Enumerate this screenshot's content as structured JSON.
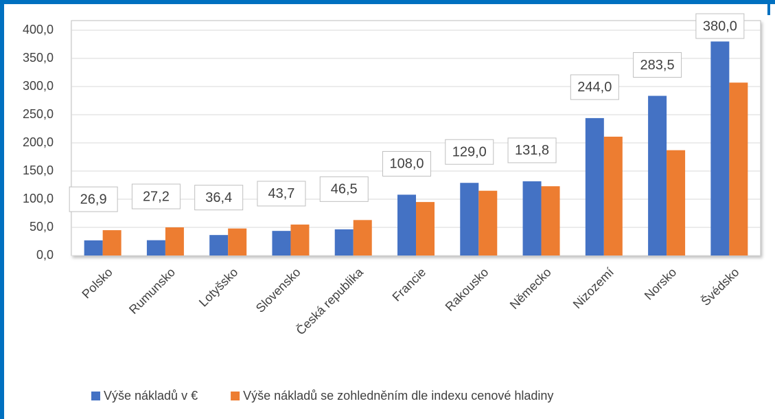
{
  "chart_data": {
    "type": "bar",
    "categories": [
      "Polsko",
      "Rumunsko",
      "Lotyšsko",
      "Slovensko",
      "Česká republika",
      "Francie",
      "Rakousko",
      "Německo",
      "Nizozemí",
      "Norsko",
      "Švédsko"
    ],
    "series": [
      {
        "name": "Výše nákladů v €",
        "color": "#4472c4",
        "values": [
          26.9,
          27.2,
          36.4,
          43.7,
          46.5,
          108.0,
          129.0,
          131.8,
          244.0,
          283.5,
          380.0
        ],
        "value_labels": [
          "26,9",
          "27,2",
          "36,4",
          "43,7",
          "46,5",
          "108,0",
          "129,0",
          "131,8",
          "244,0",
          "283,5",
          "380,0"
        ]
      },
      {
        "name": "Výše nákladů se zohledněním dle indexu cenové hladiny",
        "color": "#ed7d31",
        "values": [
          45,
          50,
          48,
          55,
          63,
          95,
          115,
          123,
          211,
          187,
          307
        ]
      }
    ],
    "ylim": [
      0,
      400
    ],
    "yticks": [
      {
        "value": 0,
        "label": "0,0"
      },
      {
        "value": 50,
        "label": "50,0"
      },
      {
        "value": 100,
        "label": "100,0"
      },
      {
        "value": 150,
        "label": "150,0"
      },
      {
        "value": 200,
        "label": "200,0"
      },
      {
        "value": 250,
        "label": "250,0"
      },
      {
        "value": 300,
        "label": "300,0"
      },
      {
        "value": 350,
        "label": "350,0"
      },
      {
        "value": 400,
        "label": "400,0"
      }
    ],
    "grid": true,
    "legend": "bottom"
  }
}
